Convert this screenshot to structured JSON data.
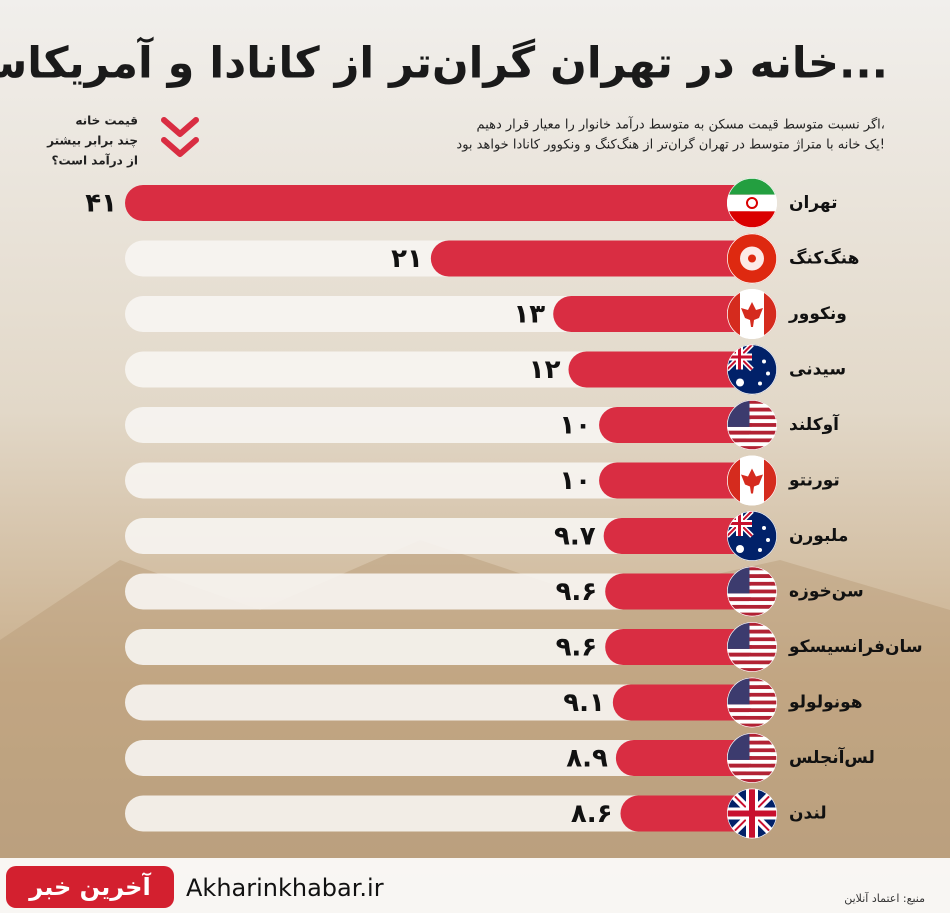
{
  "chart_data": {
    "type": "bar",
    "title": "خانه در تهران گران‌تر از کانادا و آمریکاست...",
    "subtitle": [
      "اگر نسبت متوسط قیمت مسکن به متوسط درآمد خانوار را معیار قرار دهیم،",
      "یک خانه با متراژ متوسط در تهران گران‌تر از هنگ‌کنگ و ونکوور کانادا خواهد بود!"
    ],
    "note": [
      "قیمت خانه",
      "چند برابر بیشتر",
      "از درآمد است؟"
    ],
    "categories": [
      "تهران",
      "هنگ‌کنگ",
      "ونکوور",
      "سیدنی",
      "آوکلند",
      "تورنتو",
      "ملبورن",
      "سن‌خوزه",
      "سان‌فرانسیسکو",
      "هونولولو",
      "لس‌آنجلس",
      "لندن"
    ],
    "values": [
      41,
      21,
      13,
      12,
      10,
      10,
      9.7,
      9.6,
      9.6,
      9.1,
      8.9,
      8.6
    ],
    "value_labels": [
      "۴۱",
      "۲۱",
      "۱۳",
      "۱۲",
      "۱۰",
      "۱۰",
      "۹.۷",
      "۹.۶",
      "۹.۶",
      "۹.۱",
      "۸.۹",
      "۸.۶"
    ],
    "color": "#d92d42",
    "source": "منبع: اعتماد آنلاین",
    "brand": "آخرین خبر",
    "website": "Akharinkhabar.ir"
  }
}
